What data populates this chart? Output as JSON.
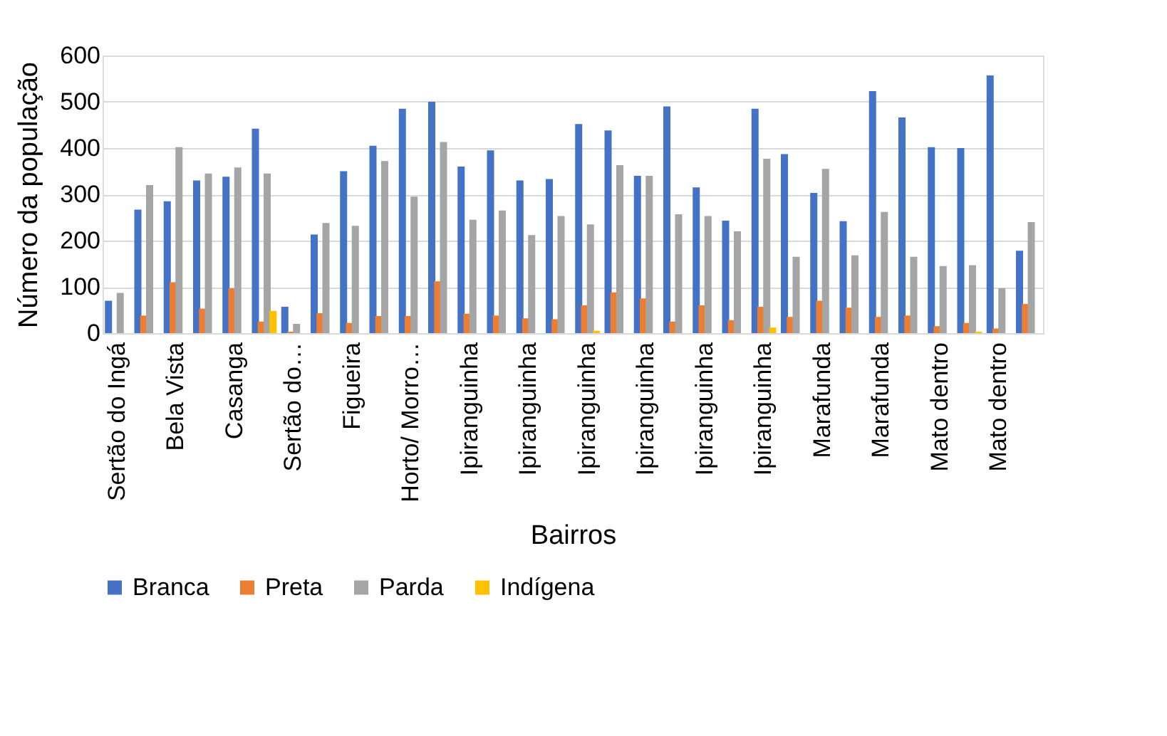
{
  "chart_data": {
    "type": "bar",
    "xlabel": "Bairros",
    "ylabel": "Número da população",
    "categories": [
      "Sertão do Ingá",
      null,
      "Bela Vista",
      null,
      "Casanga",
      null,
      "Sertão do…",
      null,
      "Figueira",
      null,
      "Horto/ Morro…",
      null,
      "Ipiranguinha",
      null,
      "Ipiranguinha",
      null,
      "Ipiranguinha",
      null,
      "Ipiranguinha",
      null,
      "Ipiranguinha",
      null,
      "Ipiranguinha",
      null,
      "Marafunda",
      null,
      "Marafunda",
      null,
      "Mato dentro",
      null,
      "Mato dentro",
      null
    ],
    "series": [
      {
        "name": "Branca",
        "color": "#4472c4",
        "values": [
          70,
          267,
          285,
          330,
          338,
          442,
          57,
          213,
          350,
          405,
          485,
          500,
          360,
          395,
          330,
          333,
          452,
          438,
          340,
          490,
          315,
          243,
          485,
          387,
          303,
          242,
          523,
          466,
          402,
          400,
          557,
          178
        ]
      },
      {
        "name": "Preta",
        "color": "#ed7d31",
        "values": [
          0,
          38,
          110,
          53,
          97,
          25,
          3,
          43,
          22,
          37,
          37,
          112,
          42,
          38,
          32,
          30,
          60,
          88,
          75,
          25,
          60,
          28,
          57,
          35,
          70,
          55,
          35,
          38,
          15,
          22,
          10,
          63
        ]
      },
      {
        "name": "Parda",
        "color": "#a5a5a5",
        "values": [
          87,
          320,
          402,
          345,
          358,
          345,
          20,
          238,
          232,
          372,
          295,
          413,
          245,
          265,
          212,
          253,
          235,
          363,
          340,
          257,
          253,
          220,
          377,
          165,
          355,
          168,
          262,
          165,
          145,
          147,
          97,
          240
        ]
      },
      {
        "name": "Indígena",
        "color": "#ffc000",
        "values": [
          0,
          0,
          0,
          0,
          0,
          48,
          0,
          0,
          0,
          0,
          0,
          0,
          0,
          0,
          0,
          0,
          5,
          0,
          0,
          0,
          0,
          0,
          12,
          0,
          0,
          0,
          0,
          0,
          0,
          3,
          0,
          0
        ]
      }
    ],
    "ylim": [
      0,
      600
    ],
    "yticks": [
      0,
      100,
      200,
      300,
      400,
      500,
      600
    ],
    "grid": "y",
    "legend": "bottom"
  }
}
